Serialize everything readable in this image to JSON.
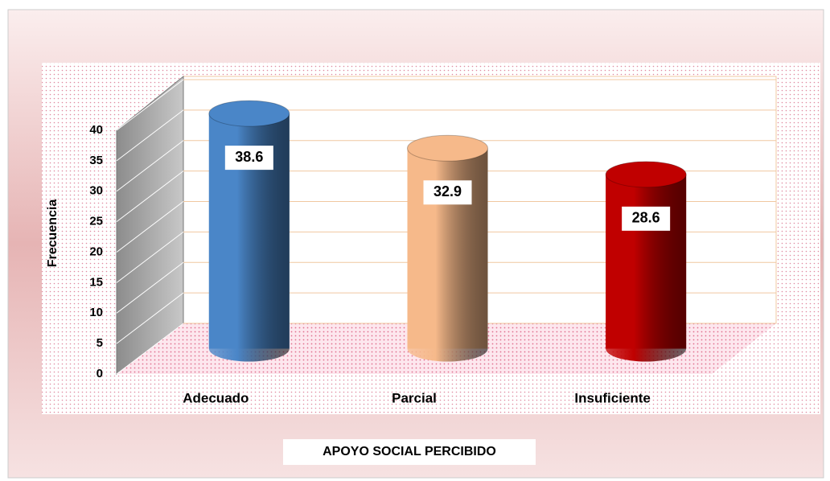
{
  "chart_data": {
    "type": "bar",
    "three_d": true,
    "x_label": "APOYO SOCIAL PERCIBIDO",
    "y_label": "Frecuencia",
    "categories": [
      "Adecuado",
      "Parcial",
      "Insuficiente"
    ],
    "values": [
      38.6,
      32.9,
      28.6
    ],
    "colors": [
      "#4a86c8",
      "#f6b98a",
      "#c00000"
    ],
    "ylim": [
      0,
      40
    ],
    "yticks": [
      0,
      5,
      10,
      15,
      20,
      25,
      30,
      35,
      40
    ],
    "grid": true
  }
}
